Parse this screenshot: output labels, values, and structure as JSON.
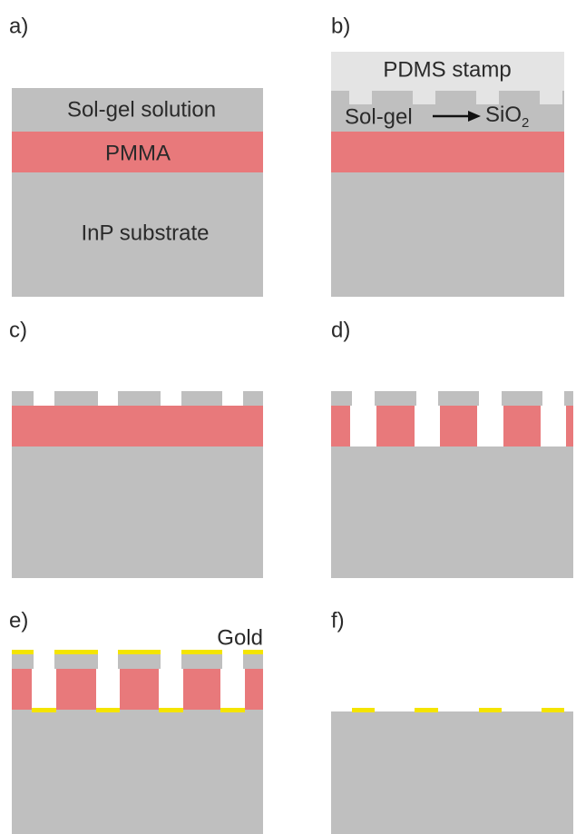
{
  "panels": [
    {
      "label": "a)",
      "layers": {
        "sol_gel": "Sol-gel solution",
        "pmma": "PMMA",
        "substrate": "InP substrate"
      }
    },
    {
      "label": "b)",
      "stamp": "PDMS stamp",
      "sol_gel": "Sol-gel",
      "product": {
        "base": "SiO",
        "subscript": "2"
      }
    },
    {
      "label": "c)"
    },
    {
      "label": "d)"
    },
    {
      "label": "e)",
      "gold": "Gold"
    },
    {
      "label": "f)"
    }
  ]
}
